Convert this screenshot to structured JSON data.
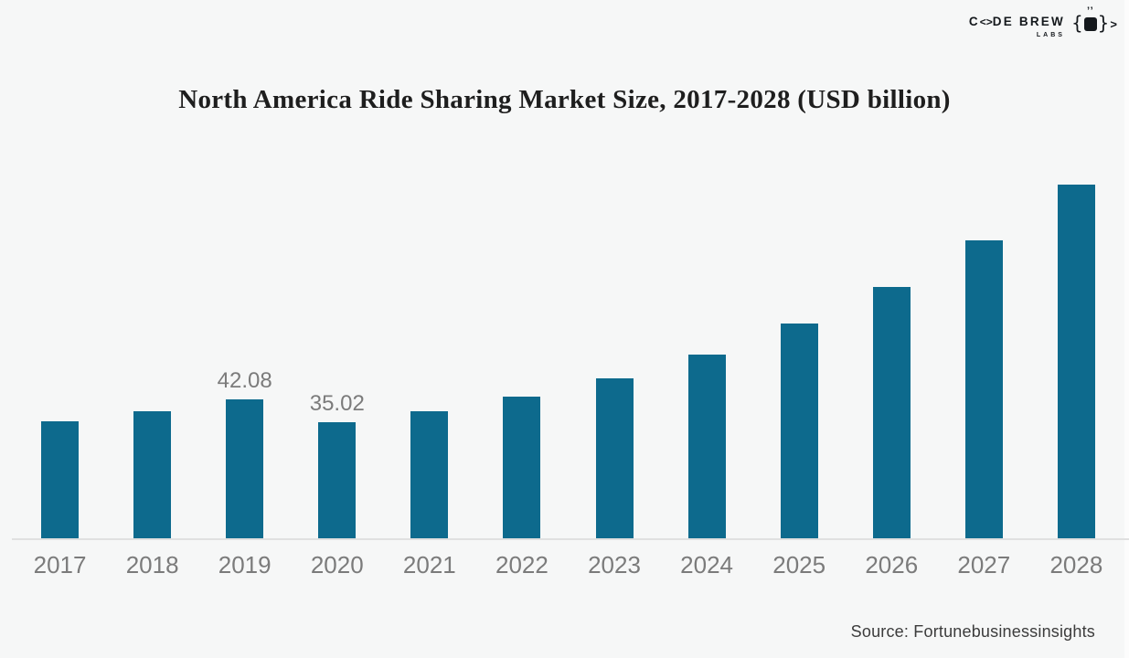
{
  "page": {
    "background_color": "#f6f7f7",
    "source_note": "Source: Fortunebusinessinsights"
  },
  "logo": {
    "brand_prefix": "C",
    "brand_o_glyph": "<>",
    "brand_rest": "DE BREW",
    "brand_sub": "LABS",
    "icon": "phone-in-braces-icon",
    "icon_left_brace": "{",
    "icon_right_brace": "}",
    "icon_quotes": "’’",
    "icon_chevron": ">",
    "color": "#14181c"
  },
  "chart_data": {
    "type": "bar",
    "title": "North America Ride Sharing Market Size, 2017-2028 (USD billion)",
    "categories": [
      "2017",
      "2018",
      "2019",
      "2020",
      "2021",
      "2022",
      "2023",
      "2024",
      "2025",
      "2026",
      "2027",
      "2028"
    ],
    "values": [
      35.4,
      38.5,
      42.08,
      35.02,
      38.5,
      42.9,
      48.4,
      55.4,
      64.8,
      76.0,
      90.0,
      106.9
    ],
    "data_labels": [
      "",
      "",
      "42.08",
      "35.02",
      "",
      "",
      "",
      "",
      "",
      "",
      "",
      ""
    ],
    "labeled_points_note": "only 2019 and 2020 carry printed value labels",
    "xlabel": "",
    "ylabel": "",
    "ylim": [
      0,
      110
    ],
    "grid": false,
    "legend": false,
    "y_axis_shown": false,
    "bar_color": "#0d6a8d",
    "value_label_color": "#7b7b7b",
    "tick_label_color": "#7b7b7b",
    "axis_line_color": "#e0e0e0"
  }
}
